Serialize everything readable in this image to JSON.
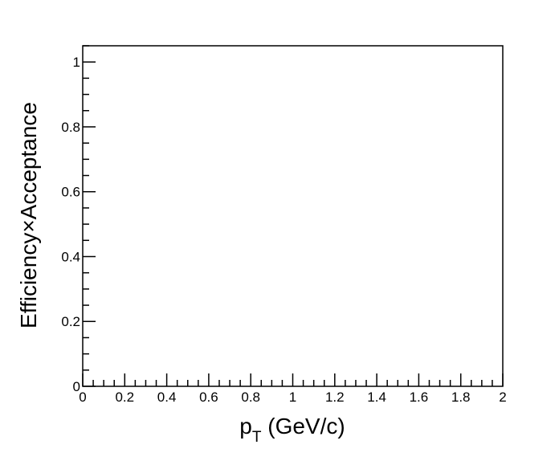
{
  "chart_data": {
    "type": "scatter",
    "title": "",
    "xlabel": "p",
    "xlabel_subscript": "T",
    "xlabel_suffix": " (GeV/c)",
    "ylabel": "Efficiency×Acceptance",
    "xlim": [
      0,
      2
    ],
    "ylim": [
      0,
      1.05
    ],
    "xticks": [
      0,
      0.2,
      0.4,
      0.6,
      0.8,
      1,
      1.2,
      1.4,
      1.6,
      1.8,
      2
    ],
    "xtick_labels": [
      "0",
      "0.2",
      "0.4",
      "0.6",
      "0.8",
      "1",
      "1.2",
      "1.4",
      "1.6",
      "1.8",
      "2"
    ],
    "yticks": [
      0,
      0.2,
      0.4,
      0.6,
      0.8,
      1
    ],
    "ytick_labels": [
      "0",
      "0.2",
      "0.4",
      "0.6",
      "0.8",
      "1"
    ],
    "x_minor_step": 0.05,
    "y_minor_step": 0.05,
    "grid": false,
    "legend": "none",
    "series": []
  }
}
